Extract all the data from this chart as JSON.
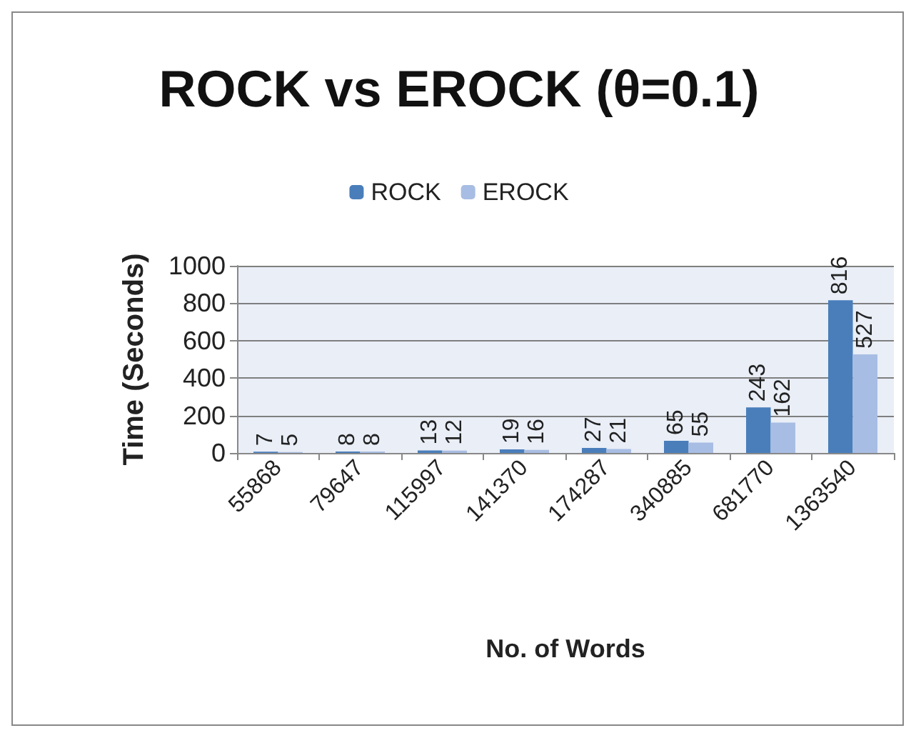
{
  "chart_data": {
    "type": "bar",
    "title": "ROCK vs EROCK (θ=0.1)",
    "xlabel": "No. of Words",
    "ylabel": "Time (Seconds)",
    "categories": [
      "55868",
      "79647",
      "115997",
      "141370",
      "174287",
      "340885",
      "681770",
      "1363540"
    ],
    "series": [
      {
        "name": "ROCK",
        "color": "#4a7ebb",
        "values": [
          7,
          8,
          13,
          19,
          27,
          65,
          243,
          816
        ]
      },
      {
        "name": "EROCK",
        "color": "#a8bde3",
        "values": [
          5,
          8,
          12,
          16,
          21,
          55,
          162,
          527
        ]
      }
    ],
    "ylim": [
      0,
      1000
    ],
    "yticks": [
      0,
      200,
      400,
      600,
      800,
      1000
    ],
    "grid": "y",
    "legend": "top",
    "data_labels": true
  }
}
